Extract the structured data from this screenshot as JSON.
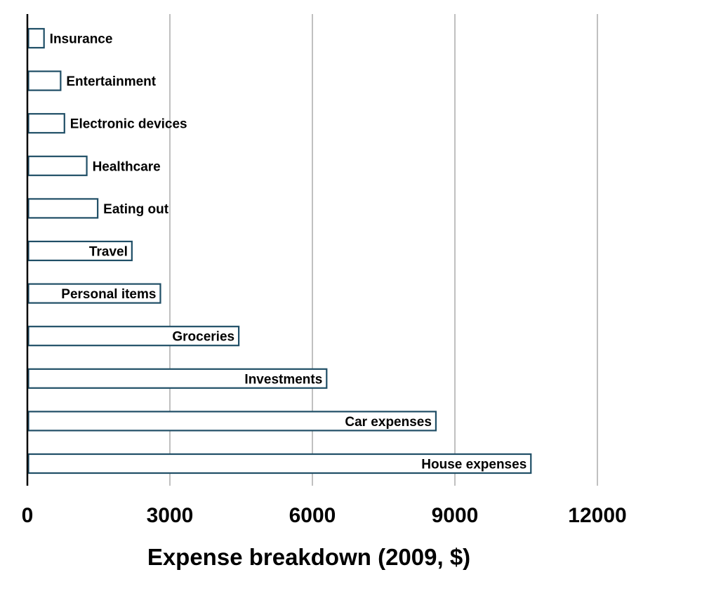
{
  "chart_data": {
    "type": "bar",
    "orientation": "horizontal",
    "title": "",
    "xlabel": "Expense breakdown (2009, $)",
    "ylabel": "",
    "xlim": [
      0,
      13500
    ],
    "xticks": [
      0,
      3000,
      6000,
      9000,
      12000
    ],
    "xtick_labels": [
      "0",
      "3000",
      "6000",
      "9000",
      "12000"
    ],
    "grid": "vertical",
    "legend": "none",
    "categories": [
      "Insurance",
      "Entertainment",
      "Electronic devices",
      "Healthcare",
      "Eating out",
      "Travel",
      "Personal items",
      "Groceries",
      "Investments",
      "Car expenses",
      "House expenses"
    ],
    "values": [
      350,
      700,
      780,
      1250,
      1480,
      2200,
      2800,
      4450,
      6300,
      8600,
      10600
    ],
    "colors": {
      "bar_fill": "#ffffff",
      "bar_stroke": "#1f4e66",
      "grid": "#c0c0c0",
      "axis": "#000000"
    }
  }
}
